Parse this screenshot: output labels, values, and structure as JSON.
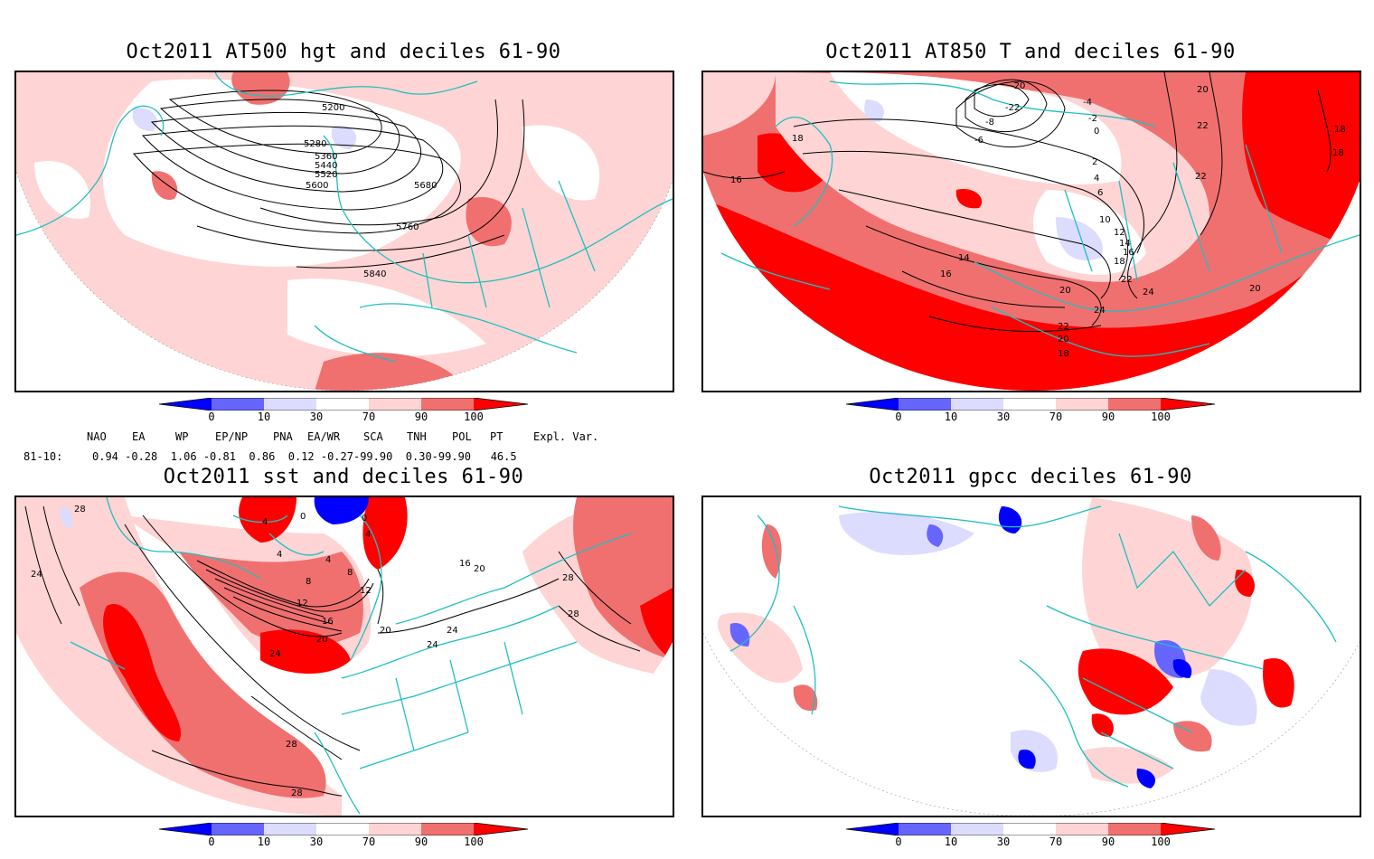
{
  "panels": [
    {
      "id": "at500",
      "title": "Oct2011 AT500 hgt and deciles 61-90",
      "contour_labels": [
        "5200",
        "5280",
        "5360",
        "5440",
        "5520",
        "5600",
        "5680",
        "5760",
        "5840"
      ]
    },
    {
      "id": "at850",
      "title": "Oct2011 AT850 T and deciles 61-90",
      "contour_labels": [
        "-20",
        "-22",
        "-8",
        "-6",
        "-4",
        "-2",
        "0",
        "2",
        "4",
        "6",
        "10",
        "12",
        "14",
        "16",
        "18",
        "20",
        "22",
        "24"
      ]
    },
    {
      "id": "sst",
      "title": "Oct2011 sst and deciles 61-90",
      "contour_labels": [
        "28",
        "24",
        "0",
        "4",
        "8",
        "12",
        "16",
        "20",
        "24",
        "28"
      ]
    },
    {
      "id": "gpcc",
      "title": "Oct2011 gpcc deciles 61-90",
      "contour_labels": []
    }
  ],
  "colorbar": {
    "ticks": [
      "0",
      "10",
      "30",
      "70",
      "90",
      "100"
    ],
    "colors": [
      "#0000ff",
      "#6666ff",
      "#dcdcff",
      "#ffffff",
      "#ffd4d4",
      "#f07070",
      "#ff0000"
    ]
  },
  "indices": {
    "headers": [
      "NAO",
      "EA",
      "WP",
      "EP/NP",
      "PNA",
      "EA/WR",
      "SCA",
      "TNH",
      "POL",
      "PT",
      "Expl. Var."
    ],
    "row_label": "81-10:",
    "values_line": "0.94 -0.28  1.06 -0.81  0.86  0.12 -0.27-99.90  0.30-99.90   46.5"
  },
  "colors": {
    "coast": "#1fbfbf",
    "light_red": "#ffd4d4",
    "mid_red": "#f07070",
    "red": "#ff0000",
    "light_blue": "#dcdcff",
    "mid_blue": "#6666ff",
    "blue": "#0000ff"
  }
}
